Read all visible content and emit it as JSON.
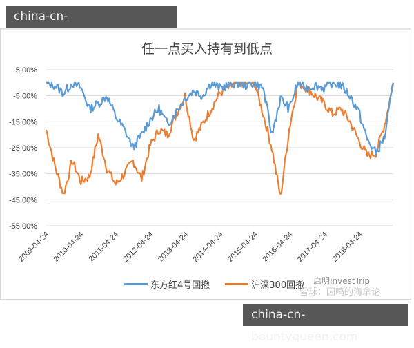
{
  "watermarks": {
    "top": "china-cn-bountyqueen.com",
    "bottom": "china-cn-bountyqueen.com"
  },
  "credit": {
    "line1": "启明InvestTrip",
    "line2": "雪球：囚鸣的海拿论"
  },
  "colors": {
    "series1": "#5b9bd5",
    "series2": "#ed7d31",
    "grid": "#d9d9d9",
    "watermark_bg": "#575757"
  },
  "chart_data": {
    "type": "line",
    "title": "任一点买入持有到低点",
    "xlabel": "",
    "ylabel": "",
    "ylim": [
      -0.55,
      0.05
    ],
    "yticks": [
      "5.00%",
      "-5.00%",
      "-15.00%",
      "-25.00%",
      "-35.00%",
      "-45.00%",
      "-55.00%"
    ],
    "grid": true,
    "legend_position": "bottom",
    "x": [
      "2009-04-24",
      "2009-07-24",
      "2009-10-24",
      "2010-01-24",
      "2010-04-24",
      "2010-07-24",
      "2010-10-24",
      "2011-01-24",
      "2011-04-24",
      "2011-07-24",
      "2011-10-24",
      "2012-01-24",
      "2012-04-24",
      "2012-07-24",
      "2012-10-24",
      "2013-01-24",
      "2013-04-24",
      "2013-07-24",
      "2013-10-24",
      "2014-01-24",
      "2014-04-24",
      "2014-07-24",
      "2014-10-24",
      "2015-01-24",
      "2015-04-24",
      "2015-07-24",
      "2015-10-24",
      "2016-01-24",
      "2016-04-24",
      "2016-07-24",
      "2016-10-24",
      "2017-01-24",
      "2017-04-24",
      "2017-07-24",
      "2017-10-24",
      "2018-01-24",
      "2018-04-24",
      "2018-07-24",
      "2018-10-24",
      "2019-01-24",
      "2019-04-24"
    ],
    "xtick_labels": [
      "2009-04-24",
      "2010-04-24",
      "2011-04-24",
      "2012-04-24",
      "2013-04-24",
      "2014-04-24",
      "2015-04-24",
      "2016-04-24",
      "2017-04-24",
      "2018-04-24"
    ],
    "series": [
      {
        "name": "东方红4号回撤",
        "color": "#5b9bd5",
        "values": [
          0.0,
          -0.01,
          -0.04,
          0.0,
          -0.02,
          -0.1,
          -0.08,
          -0.05,
          -0.13,
          -0.18,
          -0.25,
          -0.2,
          -0.14,
          -0.1,
          -0.16,
          -0.11,
          -0.06,
          -0.03,
          -0.05,
          0.0,
          -0.02,
          -0.01,
          0.0,
          -0.01,
          0.0,
          -0.02,
          -0.2,
          -0.06,
          -0.1,
          0.0,
          -0.02,
          -0.01,
          -0.02,
          0.0,
          -0.01,
          -0.05,
          -0.11,
          -0.22,
          -0.27,
          -0.21,
          0.0
        ]
      },
      {
        "name": "沪深300回撤",
        "color": "#ed7d31",
        "values": [
          -0.18,
          -0.32,
          -0.43,
          -0.3,
          -0.38,
          -0.36,
          -0.2,
          -0.33,
          -0.39,
          -0.35,
          -0.3,
          -0.37,
          -0.24,
          -0.18,
          -0.2,
          -0.12,
          -0.05,
          -0.22,
          -0.16,
          -0.1,
          -0.04,
          -0.02,
          0.0,
          0.0,
          0.0,
          -0.12,
          -0.25,
          -0.44,
          -0.18,
          0.0,
          -0.02,
          -0.05,
          -0.08,
          -0.12,
          -0.1,
          -0.15,
          -0.22,
          -0.28,
          -0.27,
          -0.16,
          0.0
        ]
      }
    ]
  }
}
